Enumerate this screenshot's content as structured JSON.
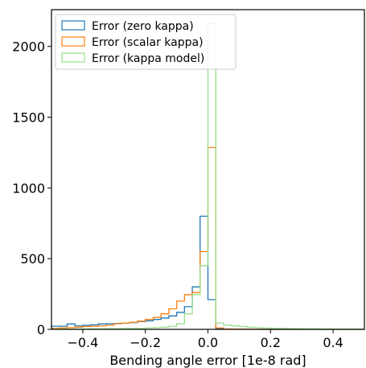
{
  "chart_data": {
    "type": "histogram",
    "title": "",
    "xlabel": "Bending angle error [1e-8 rad]",
    "ylabel": "",
    "xlim": [
      -0.5,
      0.5
    ],
    "ylim": [
      0,
      2260
    ],
    "bin_edges": [
      -0.5,
      -0.475,
      -0.45,
      -0.425,
      -0.4,
      -0.375,
      -0.35,
      -0.325,
      -0.3,
      -0.275,
      -0.25,
      -0.225,
      -0.2,
      -0.175,
      -0.15,
      -0.125,
      -0.1,
      -0.075,
      -0.05,
      -0.025,
      0.0,
      0.025,
      0.05,
      0.075,
      0.1,
      0.125,
      0.15,
      0.175,
      0.2,
      0.225,
      0.25,
      0.275,
      0.3,
      0.325,
      0.35,
      0.375,
      0.4,
      0.425,
      0.45,
      0.475,
      0.5
    ],
    "xticks": [
      -0.4,
      -0.2,
      0.0,
      0.2,
      0.4
    ],
    "xtick_labels": [
      "−0.4",
      "−0.2",
      "0.0",
      "0.2",
      "0.4"
    ],
    "yticks": [
      0,
      500,
      1000,
      1500,
      2000
    ],
    "ytick_labels": [
      "0",
      "500",
      "1000",
      "1500",
      "2000"
    ],
    "legend_position": "top-left",
    "series": [
      {
        "name": "Error (zero kappa)",
        "color": "#1f77b4",
        "counts": [
          22,
          22,
          38,
          24,
          28,
          32,
          38,
          40,
          42,
          45,
          48,
          55,
          60,
          70,
          80,
          95,
          120,
          160,
          300,
          800,
          210,
          5,
          2,
          1,
          1,
          1,
          1,
          0,
          0,
          0,
          0,
          0,
          0,
          0,
          0,
          0,
          0,
          0,
          0,
          0
        ]
      },
      {
        "name": "Error (scalar kappa)",
        "color": "#ff7f0e",
        "counts": [
          8,
          10,
          12,
          15,
          20,
          22,
          25,
          30,
          40,
          45,
          50,
          58,
          70,
          85,
          110,
          145,
          200,
          245,
          260,
          550,
          1285,
          10,
          3,
          2,
          1,
          1,
          1,
          0,
          0,
          0,
          0,
          0,
          0,
          0,
          0,
          0,
          0,
          0,
          0,
          0
        ]
      },
      {
        "name": "Error (kappa model)",
        "color": "#98df8a",
        "counts": [
          2,
          2,
          2,
          3,
          3,
          4,
          4,
          5,
          5,
          6,
          6,
          8,
          10,
          12,
          15,
          22,
          40,
          110,
          245,
          450,
          2160,
          45,
          30,
          25,
          20,
          15,
          12,
          10,
          8,
          7,
          6,
          5,
          4,
          4,
          3,
          3,
          2,
          2,
          2,
          2
        ]
      }
    ]
  }
}
